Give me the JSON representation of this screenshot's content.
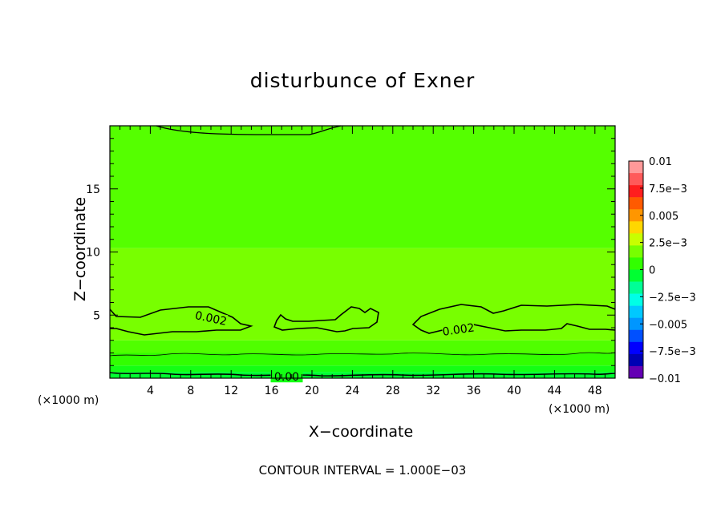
{
  "chart_data": {
    "type": "heatmap",
    "title": "disturbunce of Exner",
    "xlabel": "X−coordinate",
    "ylabel": "Z−coordinate",
    "x_unit_left": "(×1000 m)",
    "x_unit_right": "(×1000 m)",
    "footer": "CONTOUR INTERVAL = 1.000E−03",
    "xlim": [
      0,
      50
    ],
    "ylim": [
      0,
      20
    ],
    "x_ticks": [
      "4",
      "8",
      "12",
      "16",
      "20",
      "24",
      "28",
      "32",
      "36",
      "40",
      "44",
      "48"
    ],
    "y_ticks": [
      "5",
      "10",
      "15"
    ],
    "colorbar": {
      "labels": [
        "0.01",
        "7.5e−3",
        "0.005",
        "2.5e−3",
        "0",
        "−2.5e−3",
        "−0.005",
        "−7.5e−3",
        "−0.01"
      ],
      "colors": [
        "#ff9999",
        "#ff5a5a",
        "#ff1e1e",
        "#ff5a00",
        "#ff9600",
        "#ffd700",
        "#c8ff00",
        "#78ff00",
        "#32ff00",
        "#00ff32",
        "#00ff96",
        "#00ffe6",
        "#00c8ff",
        "#0096ff",
        "#0050ff",
        "#0000ff",
        "#0000b4",
        "#6400b4"
      ]
    },
    "bands": [
      {
        "z": [
          0,
          0.5
        ],
        "color": "#00ff32"
      },
      {
        "z": [
          0.5,
          1.0
        ],
        "color": "#14ff14"
      },
      {
        "z": [
          1.0,
          2.0
        ],
        "color": "#32ff00"
      },
      {
        "z": [
          2.0,
          3.0
        ],
        "color": "#50ff00"
      },
      {
        "z": [
          3.0,
          10.3
        ],
        "color": "#78ff00"
      },
      {
        "z": [
          10.3,
          20
        ],
        "color": "#55ff00"
      }
    ],
    "contour_labels": [
      {
        "text": "0.002",
        "x": 10,
        "z": 4.7
      },
      {
        "text": "0.002",
        "x": 34.5,
        "z": 3.8
      },
      {
        "text": "0.00",
        "x": 17.5,
        "z": 0.05
      }
    ]
  }
}
